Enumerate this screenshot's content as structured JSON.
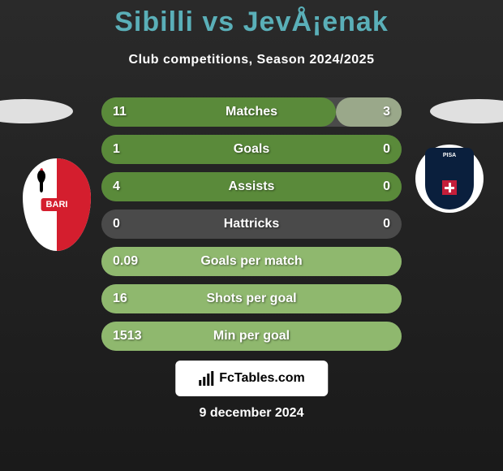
{
  "title": "Sibilli vs JevÅ¡enak",
  "subtitle": "Club competitions, Season 2024/2025",
  "date": "9 december 2024",
  "footer_brand": "FcTables.com",
  "team_left": {
    "name": "BARI",
    "colors": {
      "primary": "#d41e2e",
      "secondary": "#ffffff"
    }
  },
  "team_right": {
    "name": "PISA",
    "colors": {
      "primary": "#0a1f3d",
      "secondary": "#ffffff",
      "accent": "#c41e3a"
    }
  },
  "colors": {
    "title": "#5aafb8",
    "text": "#ffffff",
    "bar_bg": "#4a4a4a",
    "fill_left_green": "#5a8a3a",
    "fill_left_light": "#8fb86e",
    "fill_right_light": "#9aa88a"
  },
  "stats": [
    {
      "label": "Matches",
      "left_value": "11",
      "right_value": "3",
      "left_pct": 78,
      "right_pct": 22,
      "left_color": "#5a8a3a",
      "right_color": "#9aa88a"
    },
    {
      "label": "Goals",
      "left_value": "1",
      "right_value": "0",
      "left_pct": 100,
      "right_pct": 0,
      "left_color": "#5a8a3a",
      "right_color": "#9aa88a"
    },
    {
      "label": "Assists",
      "left_value": "4",
      "right_value": "0",
      "left_pct": 100,
      "right_pct": 0,
      "left_color": "#5a8a3a",
      "right_color": "#9aa88a"
    },
    {
      "label": "Hattricks",
      "left_value": "0",
      "right_value": "0",
      "left_pct": 0,
      "right_pct": 0,
      "left_color": "#5a8a3a",
      "right_color": "#9aa88a"
    },
    {
      "label": "Goals per match",
      "left_value": "0.09",
      "right_value": "",
      "left_pct": 100,
      "right_pct": 0,
      "left_color": "#8fb86e",
      "right_color": "#9aa88a"
    },
    {
      "label": "Shots per goal",
      "left_value": "16",
      "right_value": "",
      "left_pct": 100,
      "right_pct": 0,
      "left_color": "#8fb86e",
      "right_color": "#9aa88a"
    },
    {
      "label": "Min per goal",
      "left_value": "1513",
      "right_value": "",
      "left_pct": 100,
      "right_pct": 0,
      "left_color": "#8fb86e",
      "right_color": "#9aa88a"
    }
  ]
}
